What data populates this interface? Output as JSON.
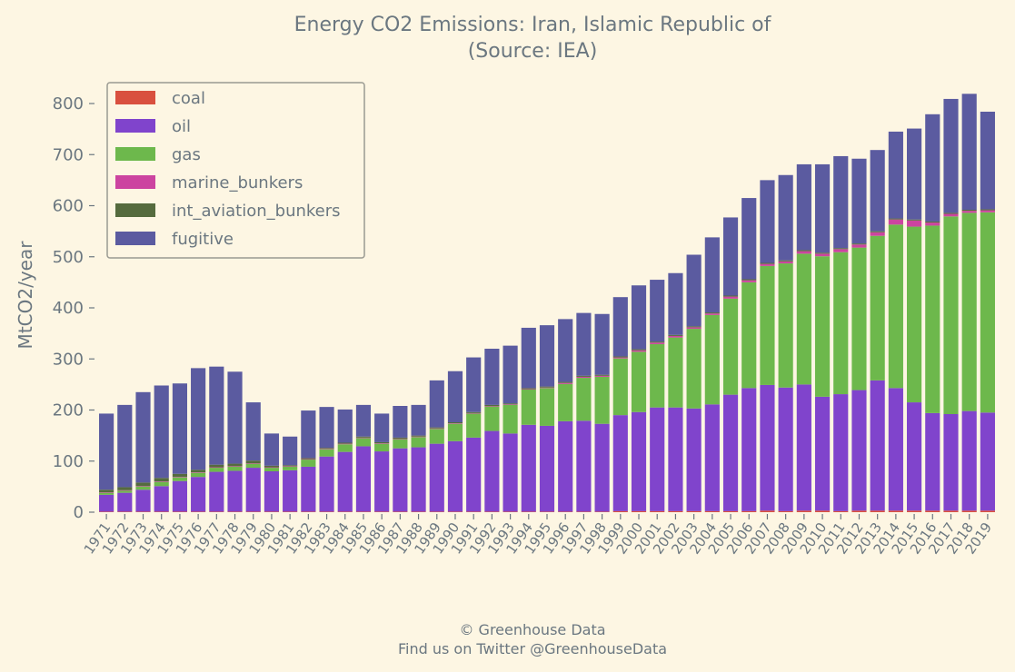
{
  "chart_data": {
    "type": "bar",
    "stacked": true,
    "title": "Energy CO2 Emissions: Iran, Islamic Republic of",
    "subtitle": "(Source: IEA)",
    "ylabel": "MtCO2/year",
    "xlabel": "",
    "ylim": [
      0,
      860
    ],
    "yticks": [
      0,
      100,
      200,
      300,
      400,
      500,
      600,
      700,
      800
    ],
    "grid": false,
    "legend_position": "top-left",
    "categories": [
      "1971",
      "1972",
      "1973",
      "1974",
      "1975",
      "1976",
      "1977",
      "1978",
      "1979",
      "1980",
      "1981",
      "1982",
      "1983",
      "1984",
      "1985",
      "1986",
      "1987",
      "1988",
      "1989",
      "1990",
      "1991",
      "1992",
      "1993",
      "1994",
      "1995",
      "1996",
      "1997",
      "1998",
      "1999",
      "2000",
      "2001",
      "2002",
      "2003",
      "2004",
      "2005",
      "2006",
      "2007",
      "2008",
      "2009",
      "2010",
      "2011",
      "2012",
      "2013",
      "2014",
      "2015",
      "2016",
      "2017",
      "2018",
      "2019"
    ],
    "series": [
      {
        "name": "coal",
        "color": "#d9503f",
        "values": [
          1,
          1,
          1,
          1,
          1,
          1,
          1,
          1,
          1,
          1,
          1,
          1,
          1,
          1,
          1,
          1,
          1,
          1,
          1,
          1,
          1,
          1,
          1,
          1,
          1,
          1,
          1,
          1,
          2,
          2,
          2,
          2,
          2,
          2,
          2,
          2,
          3,
          2,
          3,
          3,
          2,
          3,
          3,
          3,
          3,
          3,
          3,
          3,
          3
        ]
      },
      {
        "name": "oil",
        "color": "#8044cc",
        "values": [
          33,
          37,
          43,
          50,
          60,
          68,
          78,
          80,
          86,
          79,
          81,
          88,
          108,
          117,
          128,
          118,
          124,
          126,
          133,
          138,
          145,
          158,
          153,
          170,
          168,
          177,
          178,
          172,
          188,
          194,
          203,
          203,
          201,
          209,
          228,
          241,
          246,
          242,
          247,
          223,
          229,
          236,
          255,
          240,
          212,
          191,
          189,
          195,
          192
        ]
      },
      {
        "name": "gas",
        "color": "#6db84c",
        "values": [
          4,
          4,
          6,
          8,
          7,
          8,
          8,
          8,
          8,
          7,
          7,
          14,
          14,
          15,
          16,
          15,
          18,
          20,
          29,
          34,
          47,
          48,
          56,
          69,
          74,
          73,
          84,
          92,
          111,
          118,
          124,
          137,
          156,
          175,
          188,
          207,
          233,
          243,
          256,
          275,
          278,
          279,
          283,
          320,
          344,
          367,
          387,
          388,
          392
        ]
      },
      {
        "name": "marine_bunkers",
        "color": "#cc44a0",
        "values": [
          1,
          1,
          1,
          1,
          1,
          1,
          1,
          1,
          1,
          1,
          1,
          1,
          1,
          1,
          1,
          1,
          1,
          1,
          1,
          1,
          1,
          1,
          1,
          1,
          1,
          2,
          2,
          2,
          2,
          3,
          3,
          3,
          3,
          3,
          4,
          4,
          4,
          4,
          5,
          5,
          6,
          6,
          7,
          10,
          12,
          6,
          5,
          4,
          4
        ]
      },
      {
        "name": "int_aviation_bunkers",
        "color": "#556b3e",
        "values": [
          5,
          6,
          7,
          7,
          6,
          5,
          5,
          5,
          5,
          3,
          2,
          2,
          2,
          2,
          2,
          2,
          2,
          2,
          2,
          2,
          2,
          2,
          2,
          2,
          2,
          2,
          2,
          2,
          2,
          2,
          2,
          2,
          2,
          2,
          2,
          2,
          2,
          2,
          2,
          2,
          2,
          2,
          2,
          2,
          2,
          2,
          2,
          2,
          2
        ]
      },
      {
        "name": "fugitive",
        "color": "#5b5ba0",
        "values": [
          149,
          161,
          177,
          181,
          177,
          199,
          192,
          180,
          114,
          63,
          56,
          93,
          80,
          65,
          62,
          56,
          62,
          60,
          92,
          100,
          107,
          110,
          113,
          118,
          120,
          123,
          123,
          119,
          116,
          125,
          121,
          121,
          140,
          147,
          153,
          159,
          162,
          167,
          168,
          173,
          180,
          166,
          159,
          170,
          178,
          210,
          223,
          227,
          191
        ]
      }
    ]
  },
  "footer": {
    "line1": "© Greenhouse Data",
    "line2": "Find us on Twitter @GreenhouseData"
  }
}
